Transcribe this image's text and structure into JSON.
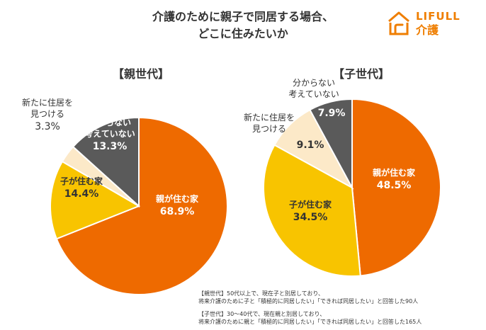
{
  "title_line1": "介護のために親子で同居する場合、",
  "title_line2": "どこに住みたいか",
  "logo": {
    "text": "LIFULL",
    "sub": "介護"
  },
  "colors": {
    "orange": "#EE6A00",
    "yellow": "#F8C400",
    "cream": "#FCE9C8",
    "gray": "#5A5A5A",
    "logo": "#EF7E00"
  },
  "chart_data": [
    {
      "type": "pie",
      "title": "【親世代】",
      "slices": [
        {
          "label": "親が住む家",
          "value": 68.9,
          "display": "68.9%",
          "color": "#EE6A00"
        },
        {
          "label": "子が住む家",
          "value": 14.4,
          "display": "14.4%",
          "color": "#F8C400"
        },
        {
          "label": "新たに住居を見つける",
          "value": 3.3,
          "display": "3.3%",
          "color": "#FCE9C8"
        },
        {
          "label": "分からない考えていない",
          "value": 13.3,
          "display": "13.3%",
          "color": "#5A5A5A"
        }
      ]
    },
    {
      "type": "pie",
      "title": "【子世代】",
      "slices": [
        {
          "label": "親が住む家",
          "value": 48.5,
          "display": "48.5%",
          "color": "#EE6A00"
        },
        {
          "label": "子が住む家",
          "value": 34.5,
          "display": "34.5%",
          "color": "#F8C400"
        },
        {
          "label": "新たに住居を見つける",
          "value": 9.1,
          "display": "9.1%",
          "color": "#FCE9C8"
        },
        {
          "label": "分からない考えていない",
          "value": 7.9,
          "display": "7.9%",
          "color": "#5A5A5A"
        }
      ]
    }
  ],
  "labels": {
    "own_home": "親が住む家",
    "child_home": "子が住む家",
    "new_home_1": "新たに住居を",
    "new_home_2": "見つける",
    "unknown_1": "分からない",
    "unknown_2": "考えていない"
  },
  "notes": {
    "parent_1": "【親世代】50代以上で、現在子と別居しており、",
    "parent_2": "将来介護のために子と「積極的に同居したい」「できれば同居したい」と回答した90人",
    "child_1": "【子世代】30～40代で、現在親と別居しており、",
    "child_2": "将来介護のために親と「積極的に同居したい」「できれば同居したい」と回答した165人"
  }
}
